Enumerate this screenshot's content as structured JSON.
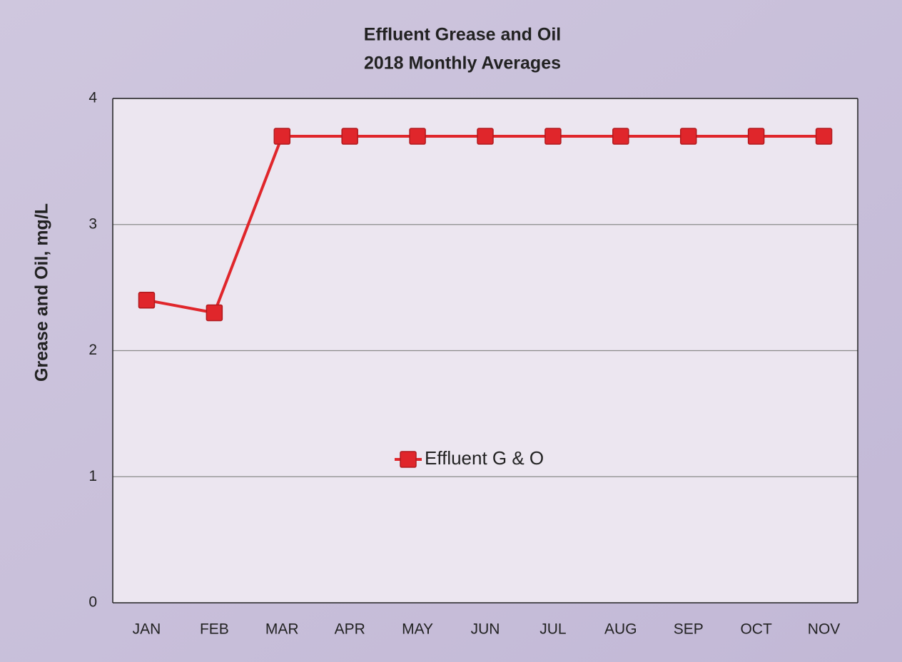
{
  "chart_data": {
    "type": "line",
    "title": "Effluent Grease and Oil",
    "subtitle": "2018 Monthly Averages",
    "y_label": "Grease and Oil, mg/L",
    "categories": [
      "JAN",
      "FEB",
      "MAR",
      "APR",
      "MAY",
      "JUN",
      "JUL",
      "AUG",
      "SEP",
      "OCT",
      "NOV"
    ],
    "series": [
      {
        "name": "Effluent G & O",
        "color": "#e0262b",
        "values": [
          2.4,
          2.3,
          3.7,
          3.7,
          3.7,
          3.7,
          3.7,
          3.7,
          3.7,
          3.7,
          3.7
        ]
      }
    ],
    "ylim": [
      0,
      4
    ],
    "yticks": [
      0,
      1,
      2,
      3,
      4
    ],
    "grid": true,
    "legend": "center"
  }
}
